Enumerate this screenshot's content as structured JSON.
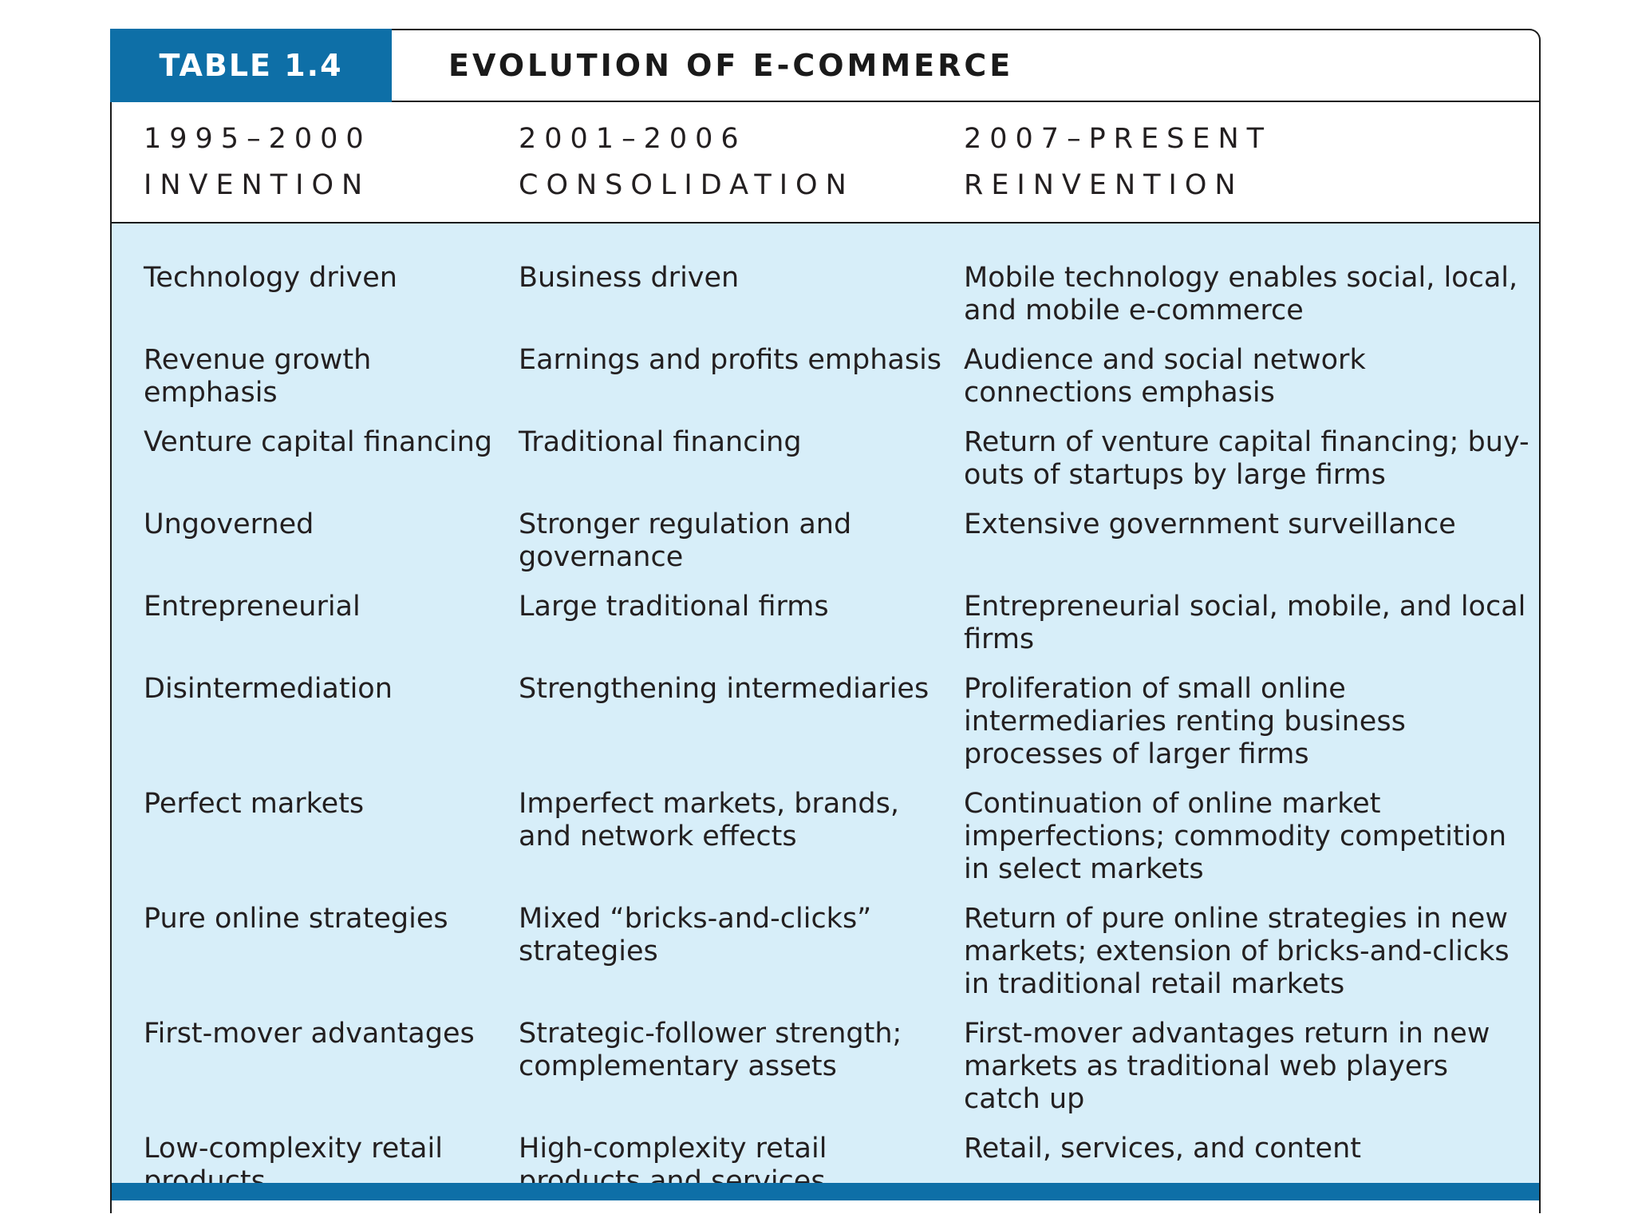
{
  "table": {
    "label": "TABLE 1.4",
    "title": "EVOLUTION OF E-COMMERCE"
  },
  "columns": [
    {
      "period": "1995–2000",
      "phase": "INVENTION"
    },
    {
      "period": "2001–2006",
      "phase": "CONSOLIDATION"
    },
    {
      "period": "2007–PRESENT",
      "phase": "REINVENTION"
    }
  ],
  "rows": [
    [
      "Technology driven",
      "Business driven",
      "Mobile technology enables social, local, and mobile e-commerce"
    ],
    [
      "Revenue growth emphasis",
      "Earnings and profits emphasis",
      "Audience and social network connections emphasis"
    ],
    [
      "Venture capital financing",
      "Traditional financing",
      "Return of venture capital financing; buy-outs of startups by large firms"
    ],
    [
      "Ungoverned",
      "Stronger regulation and governance",
      "Extensive government surveillance"
    ],
    [
      "Entrepreneurial",
      "Large traditional firms",
      "Entrepreneurial social, mobile, and local firms"
    ],
    [
      "Disintermediation",
      "Strengthening intermediaries",
      "Proliferation of small online intermediaries renting business processes of larger firms"
    ],
    [
      "Perfect markets",
      "Imperfect markets, brands, and network effects",
      "Continuation of online market imperfections; commodity competition in select markets"
    ],
    [
      "Pure online strategies",
      "Mixed “bricks-and-clicks” strategies",
      "Return of pure online strategies in new markets; extension of bricks-and-clicks in traditional retail markets"
    ],
    [
      "First-mover advantages",
      "Strategic-follower strength; complementary assets",
      "First-mover advantages return in new markets as traditional web players catch up"
    ],
    [
      "Low-complexity retail products",
      "High-complexity retail products and services",
      "Retail, services, and content"
    ]
  ]
}
